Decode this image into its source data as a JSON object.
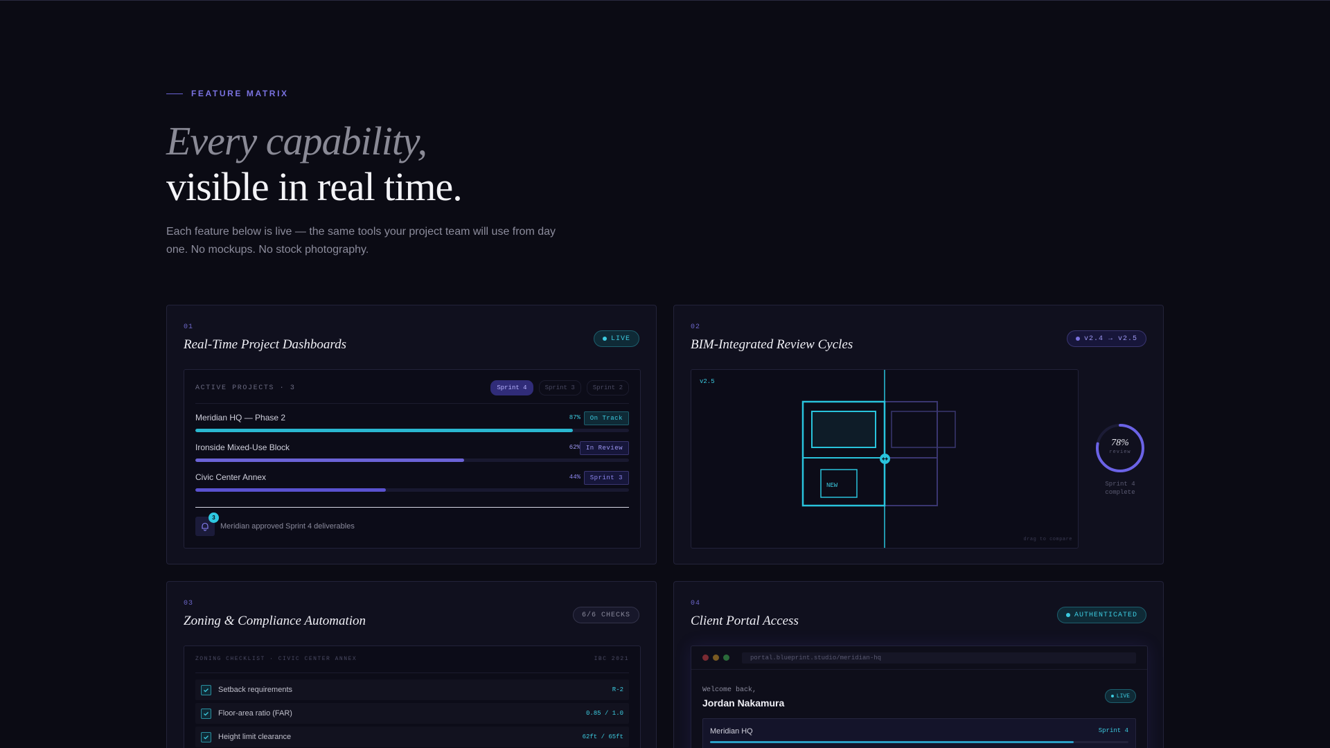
{
  "hero": {
    "eyebrow": "FEATURE MATRIX",
    "title_line1": "Every capability,",
    "title_line2": "visible in real time.",
    "lede": "Each feature below is live — the same tools your project team will use from day one. No mockups. No stock photography."
  },
  "colors": {
    "accent_violet": "#6b63d6",
    "accent_cyan": "#3ccbe0",
    "background": "#0b0b14"
  },
  "cards": [
    {
      "num": "01",
      "title": "Real-Time Project Dashboards",
      "pill": "LIVE",
      "panel": {
        "header": "ACTIVE PROJECTS · 3",
        "sprint_tabs": [
          "Sprint 4",
          "Sprint 3",
          "Sprint 2"
        ],
        "active_tab": "Sprint 4",
        "projects": [
          {
            "name": "Meridian HQ — Phase 2",
            "pct_label": "87%",
            "progress": 0.87,
            "status": "On Track",
            "color": "#2ab7d0"
          },
          {
            "name": "Ironside Mixed-Use Block",
            "pct_label": "62%",
            "progress": 0.62,
            "status": "In Review",
            "color": "#6b63d6"
          },
          {
            "name": "Civic Center Annex",
            "pct_label": "44%",
            "progress": 0.44,
            "status": "Sprint 3",
            "color": "#5a52d0"
          }
        ],
        "notification": {
          "badge": "3",
          "text": "Meridian approved Sprint 4 deliverables",
          "icon": "bell-icon"
        }
      }
    },
    {
      "num": "02",
      "title": "BIM-Integrated Review Cycles",
      "pill": "v2.4 → v2.5",
      "panel": {
        "version_label": "v2.5",
        "new_label": "NEW",
        "drag_hint": "drag to compare",
        "gauge": {
          "pct_label": "78%",
          "value": 0.78,
          "sub": "review",
          "caption_line1": "Sprint 4",
          "caption_line2": "complete"
        }
      }
    },
    {
      "num": "03",
      "title": "Zoning & Compliance Automation",
      "pill": "6/6 CHECKS",
      "panel": {
        "header": "ZONING CHECKLIST · CIVIC CENTER ANNEX",
        "code": "IBC 2021",
        "checks": [
          {
            "label": "Setback requirements",
            "value": "R-2"
          },
          {
            "label": "Floor-area ratio (FAR)",
            "value": "0.85 / 1.0"
          },
          {
            "label": "Height limit clearance",
            "value": "62ft / 65ft"
          }
        ]
      }
    },
    {
      "num": "04",
      "title": "Client Portal Access",
      "pill": "AUTHENTICATED",
      "panel": {
        "url": "portal.blueprint.studio/meridian-hq",
        "welcome": "Welcome back,",
        "user": "Jordan Nakamura",
        "live": "LIVE",
        "project": {
          "name": "Meridian HQ",
          "sprint": "Sprint 4",
          "progress": 0.87
        }
      }
    }
  ]
}
